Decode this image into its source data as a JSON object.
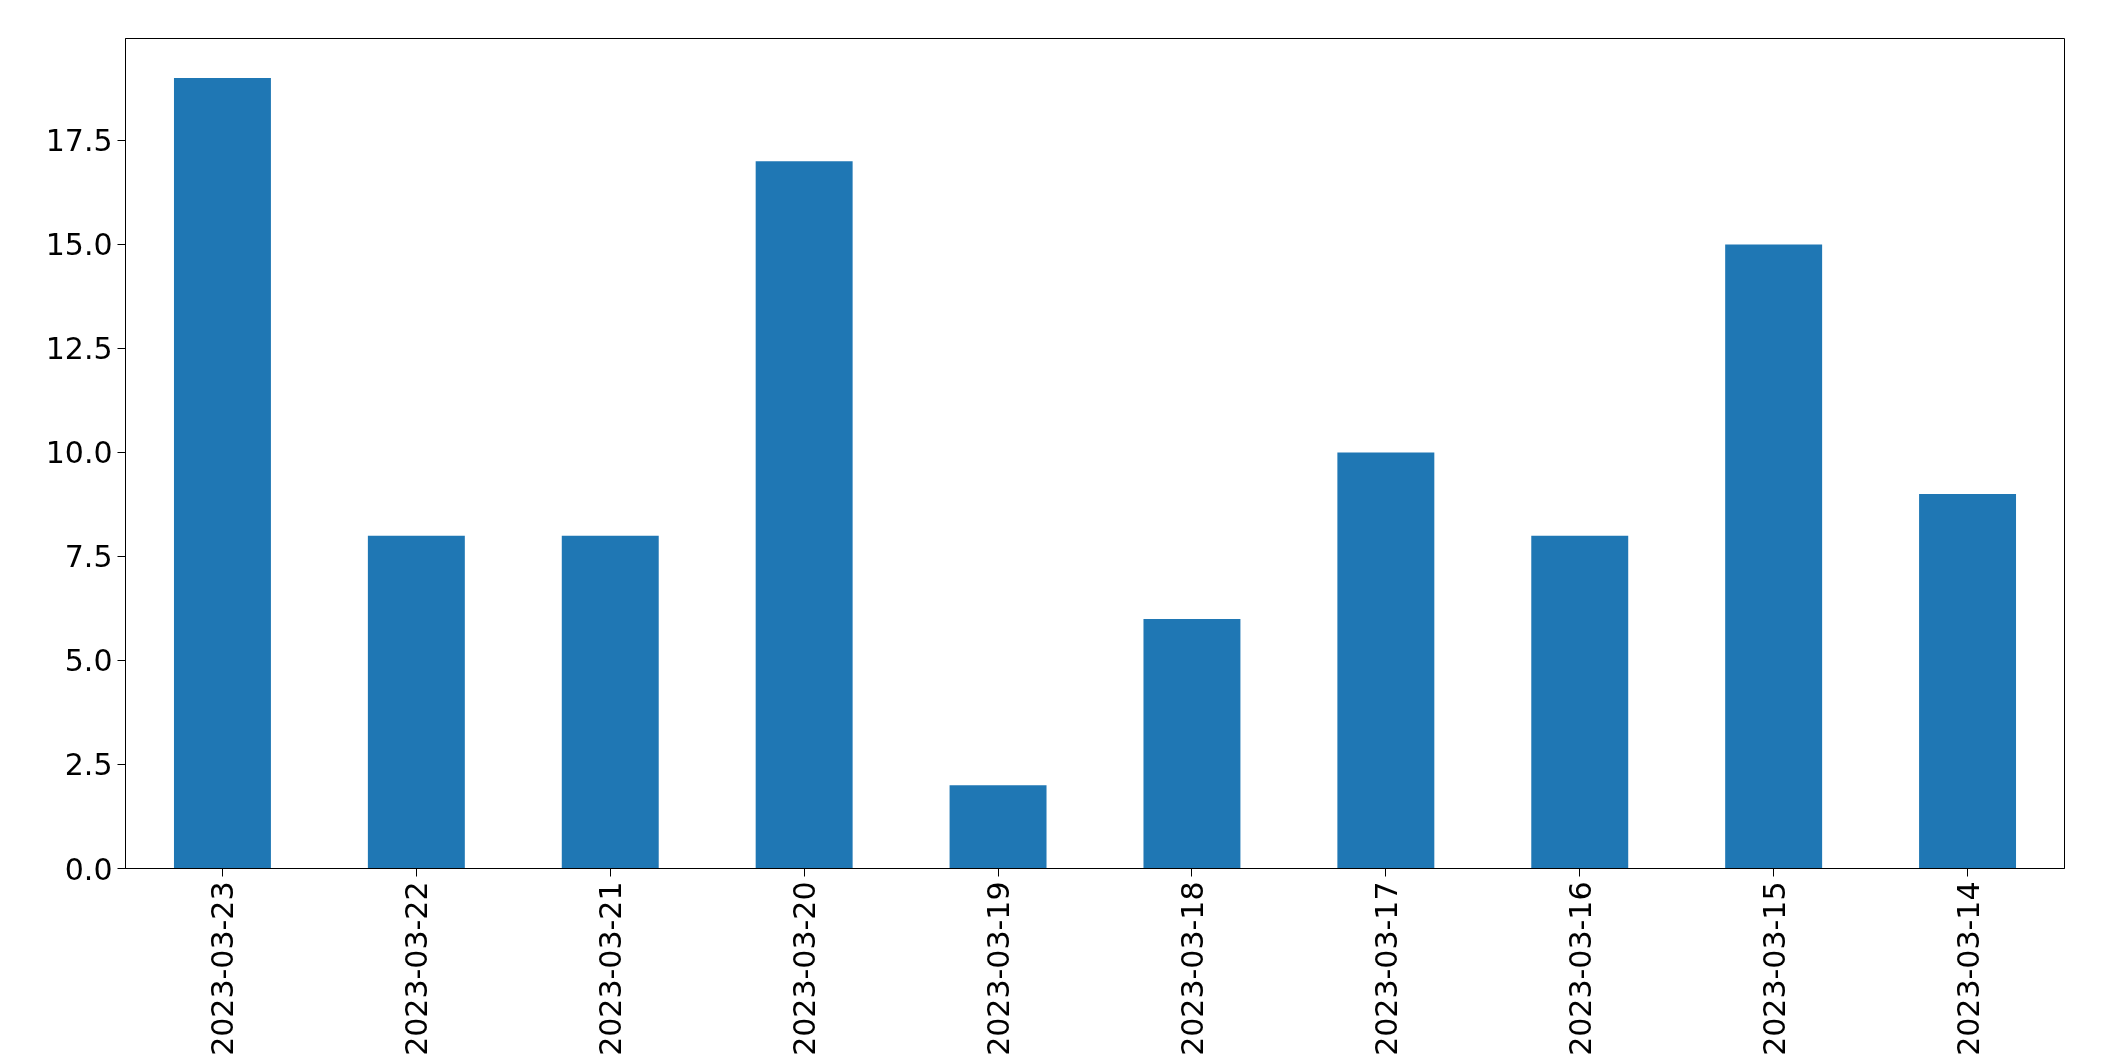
{
  "chart_data": {
    "type": "bar",
    "categories": [
      "2023-03-23",
      "2023-03-22",
      "2023-03-21",
      "2023-03-20",
      "2023-03-19",
      "2023-03-18",
      "2023-03-17",
      "2023-03-16",
      "2023-03-15",
      "2023-03-14"
    ],
    "values": [
      19,
      8,
      8,
      17,
      2,
      6,
      10,
      8,
      15,
      9
    ],
    "color": "#1f77b4",
    "ylim": [
      0,
      19.95
    ],
    "yticks": [
      {
        "value": 0,
        "label": "0.0"
      },
      2.5,
      {
        "value": 5,
        "label": "5.0"
      },
      7.5,
      {
        "value": 10,
        "label": "10.0"
      },
      12.5,
      {
        "value": 15,
        "label": "15.0"
      },
      17.5
    ],
    "grid": false
  }
}
